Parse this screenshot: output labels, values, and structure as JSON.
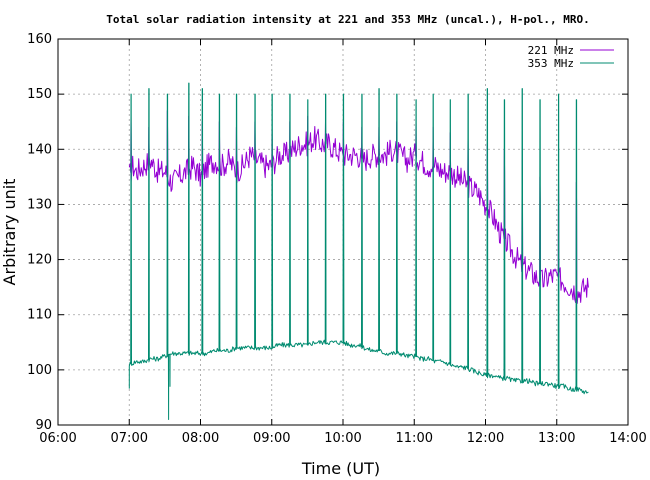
{
  "chart_data": {
    "type": "line",
    "title": "Total solar radiation intensity at 221 and 353 MHz (uncal.), H-pol., MRO.",
    "xlabel": "Time (UT)",
    "ylabel": "Arbitrary unit",
    "xlim": [
      6.0,
      14.0
    ],
    "ylim": [
      90,
      160
    ],
    "x_ticks": [
      {
        "value": 6,
        "label": "06:00"
      },
      {
        "value": 7,
        "label": "07:00"
      },
      {
        "value": 8,
        "label": "08:00"
      },
      {
        "value": 9,
        "label": "09:00"
      },
      {
        "value": 10,
        "label": "10:00"
      },
      {
        "value": 11,
        "label": "11:00"
      },
      {
        "value": 12,
        "label": "12:00"
      },
      {
        "value": 13,
        "label": "13:00"
      },
      {
        "value": 14,
        "label": "14:00"
      }
    ],
    "y_ticks": [
      {
        "value": 90,
        "label": "90"
      },
      {
        "value": 100,
        "label": "100"
      },
      {
        "value": 110,
        "label": "110"
      },
      {
        "value": 120,
        "label": "120"
      },
      {
        "value": 130,
        "label": "130"
      },
      {
        "value": 140,
        "label": "140"
      },
      {
        "value": 150,
        "label": "150"
      },
      {
        "value": 160,
        "label": "160"
      }
    ],
    "grid": true,
    "legend_position": "top-right",
    "series": [
      {
        "name": "221 MHz",
        "color": "#9400d3",
        "x": [
          7.0,
          7.05,
          7.1,
          7.2,
          7.3,
          7.4,
          7.5,
          7.6,
          7.7,
          7.8,
          7.9,
          8.0,
          8.1,
          8.2,
          8.3,
          8.4,
          8.5,
          8.6,
          8.7,
          8.8,
          8.9,
          9.0,
          9.1,
          9.2,
          9.3,
          9.4,
          9.5,
          9.6,
          9.7,
          9.8,
          9.9,
          10.0,
          10.1,
          10.2,
          10.3,
          10.4,
          10.5,
          10.6,
          10.7,
          10.8,
          10.9,
          11.0,
          11.1,
          11.2,
          11.3,
          11.4,
          11.5,
          11.6,
          11.7,
          11.8,
          11.9,
          12.0,
          12.1,
          12.2,
          12.3,
          12.4,
          12.5,
          12.6,
          12.7,
          12.8,
          12.9,
          13.0,
          13.1,
          13.2,
          13.3,
          13.4,
          13.45
        ],
        "values": [
          135,
          137,
          136,
          137,
          138,
          136,
          136,
          134,
          135,
          136,
          137,
          135,
          137,
          138,
          137,
          138,
          136,
          137,
          139,
          138,
          137,
          137,
          139,
          139,
          140,
          141,
          141,
          142,
          141,
          141,
          140,
          139,
          139,
          139,
          138,
          139,
          139,
          139,
          140,
          139,
          138,
          139,
          138,
          137,
          137,
          136,
          136,
          135,
          134,
          133,
          132,
          130,
          128,
          125,
          123,
          121,
          119,
          118,
          117,
          116,
          117,
          117,
          116,
          115,
          114,
          115,
          115
        ]
      },
      {
        "name": "353 MHz",
        "color": "#008b70",
        "x": [
          7.0,
          7.1,
          7.2,
          7.3,
          7.4,
          7.5,
          7.6,
          7.7,
          7.8,
          7.9,
          8.0,
          8.1,
          8.2,
          8.3,
          8.4,
          8.5,
          8.6,
          8.7,
          8.8,
          8.9,
          9.0,
          9.1,
          9.2,
          9.3,
          9.4,
          9.5,
          9.6,
          9.7,
          9.8,
          9.9,
          10.0,
          10.1,
          10.2,
          10.3,
          10.4,
          10.5,
          10.6,
          10.7,
          10.8,
          10.9,
          11.0,
          11.1,
          11.2,
          11.3,
          11.4,
          11.5,
          11.6,
          11.7,
          11.8,
          11.9,
          12.0,
          12.1,
          12.2,
          12.3,
          12.4,
          12.5,
          12.6,
          12.7,
          12.8,
          12.9,
          13.0,
          13.1,
          13.2,
          13.3,
          13.4,
          13.45
        ],
        "values": [
          101,
          101.5,
          101.5,
          102,
          102,
          102.5,
          103,
          103,
          103,
          103,
          103,
          103,
          103.5,
          103.5,
          103.5,
          104,
          104,
          104,
          104,
          104,
          104,
          104.5,
          104.5,
          104.5,
          104.5,
          104.5,
          105,
          105,
          105,
          105,
          105,
          104.5,
          104.5,
          104,
          103.5,
          103.5,
          103,
          103,
          103,
          102.5,
          102.5,
          102,
          102,
          101.5,
          101.5,
          101,
          100.5,
          100.5,
          100,
          99.5,
          99,
          99,
          98.5,
          98.5,
          98,
          98,
          98,
          97.5,
          97.5,
          97.5,
          97,
          97,
          96.5,
          96.5,
          96,
          96
        ]
      }
    ],
    "spikes": [
      {
        "x": 7.02,
        "v221": 146,
        "v353": 150
      },
      {
        "x": 7.27,
        "v221": 144,
        "v353": 151
      },
      {
        "x": 7.53,
        "v221": 147,
        "v353": 150
      },
      {
        "x": 7.83,
        "v221": 146,
        "v353": 152
      },
      {
        "x": 8.02,
        "v221": 145,
        "v353": 151
      },
      {
        "x": 8.26,
        "v221": 145,
        "v353": 150
      },
      {
        "x": 8.5,
        "v221": 144,
        "v353": 150
      },
      {
        "x": 8.76,
        "v221": 145,
        "v353": 150
      },
      {
        "x": 9.0,
        "v221": 144,
        "v353": 150
      },
      {
        "x": 9.25,
        "v221": 145,
        "v353": 150
      },
      {
        "x": 9.5,
        "v221": 146,
        "v353": 149
      },
      {
        "x": 9.75,
        "v221": 145,
        "v353": 150
      },
      {
        "x": 10.0,
        "v221": 145,
        "v353": 150
      },
      {
        "x": 10.26,
        "v221": 144,
        "v353": 150
      },
      {
        "x": 10.5,
        "v221": 144,
        "v353": 151
      },
      {
        "x": 10.75,
        "v221": 145,
        "v353": 150
      },
      {
        "x": 11.02,
        "v221": 145,
        "v353": 149
      },
      {
        "x": 11.26,
        "v221": 144,
        "v353": 150
      },
      {
        "x": 11.5,
        "v221": 143,
        "v353": 149
      },
      {
        "x": 11.75,
        "v221": 142,
        "v353": 150
      },
      {
        "x": 12.02,
        "v221": 141,
        "v353": 151
      },
      {
        "x": 12.26,
        "v221": 140,
        "v353": 149
      },
      {
        "x": 12.51,
        "v221": 138,
        "v353": 151
      },
      {
        "x": 12.76,
        "v221": 135,
        "v353": 149
      },
      {
        "x": 13.02,
        "v221": 135,
        "v353": 150
      },
      {
        "x": 13.27,
        "v221": 134,
        "v353": 149
      }
    ],
    "dips_353": [
      {
        "x": 7.55,
        "value": 91
      },
      {
        "x": 7.57,
        "value": 97
      }
    ]
  }
}
